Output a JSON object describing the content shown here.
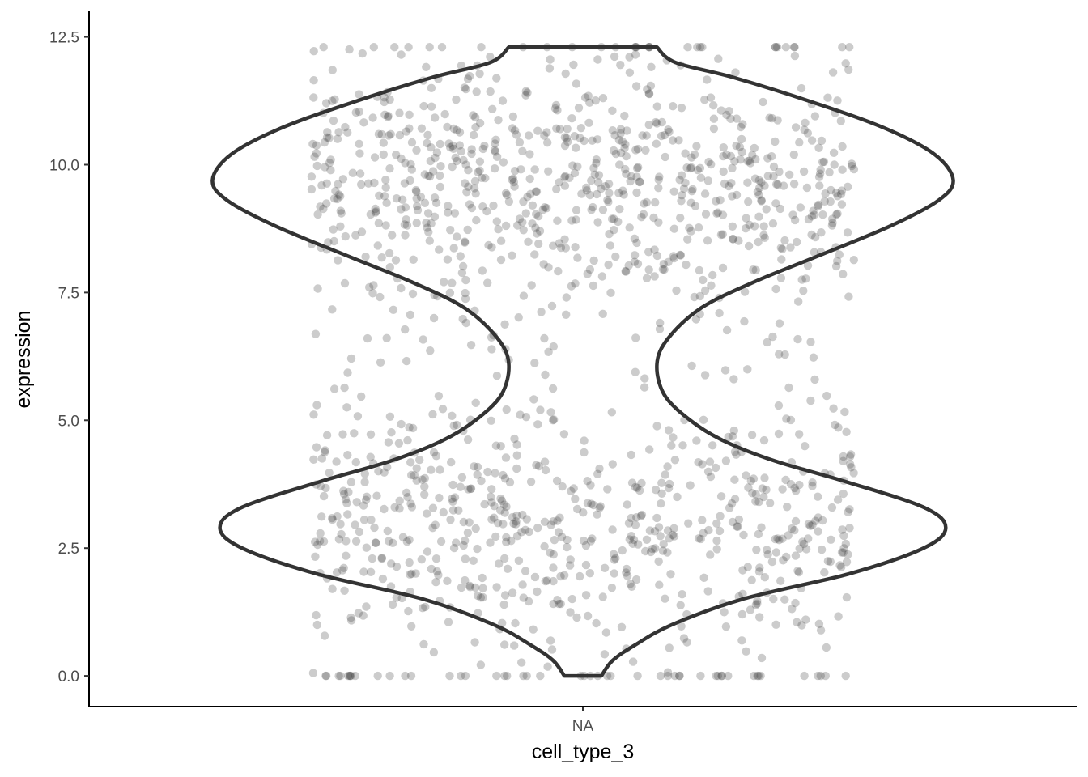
{
  "chart_data": {
    "type": "violin",
    "title": "",
    "xlabel": "cell_type_3",
    "ylabel": "expression",
    "categories": [
      "NA"
    ],
    "ylim": [
      -0.6,
      13.0
    ],
    "y_ticks": [
      0.0,
      2.5,
      5.0,
      7.5,
      10.0,
      12.5
    ],
    "y_tick_labels": [
      "0.0",
      "2.5",
      "5.0",
      "7.5",
      "10.0",
      "12.5"
    ],
    "grid": false,
    "legend": "none",
    "violin": {
      "category": "NA",
      "y_min": 0.0,
      "y_max": 12.3,
      "max_width_category_units": 0.45,
      "relative_density": [
        [
          0.0,
          0.05
        ],
        [
          0.3,
          0.08
        ],
        [
          0.6,
          0.14
        ],
        [
          1.0,
          0.24
        ],
        [
          1.5,
          0.43
        ],
        [
          2.0,
          0.72
        ],
        [
          2.5,
          0.92
        ],
        [
          2.9,
          0.98
        ],
        [
          3.3,
          0.92
        ],
        [
          3.8,
          0.71
        ],
        [
          4.2,
          0.52
        ],
        [
          4.6,
          0.38
        ],
        [
          5.0,
          0.29
        ],
        [
          5.5,
          0.22
        ],
        [
          6.1,
          0.2
        ],
        [
          6.6,
          0.23
        ],
        [
          7.2,
          0.32
        ],
        [
          7.7,
          0.46
        ],
        [
          8.2,
          0.63
        ],
        [
          8.8,
          0.83
        ],
        [
          9.3,
          0.96
        ],
        [
          9.7,
          1.0
        ],
        [
          10.2,
          0.95
        ],
        [
          10.7,
          0.82
        ],
        [
          11.2,
          0.63
        ],
        [
          11.7,
          0.41
        ],
        [
          12.0,
          0.25
        ],
        [
          12.3,
          0.2
        ]
      ]
    },
    "points": {
      "n": 1500,
      "distribution": "bimodal",
      "modes": [
        2.9,
        9.7
      ],
      "range": [
        0.0,
        12.3
      ],
      "jitter_width_category_units": 0.33,
      "color": "#333333",
      "alpha": 0.25
    },
    "colors": {
      "points": "#333333",
      "violin_outline": "#333333",
      "axis": "#000000",
      "tick_labels": "#4d4d4d",
      "background": "#ffffff"
    }
  }
}
